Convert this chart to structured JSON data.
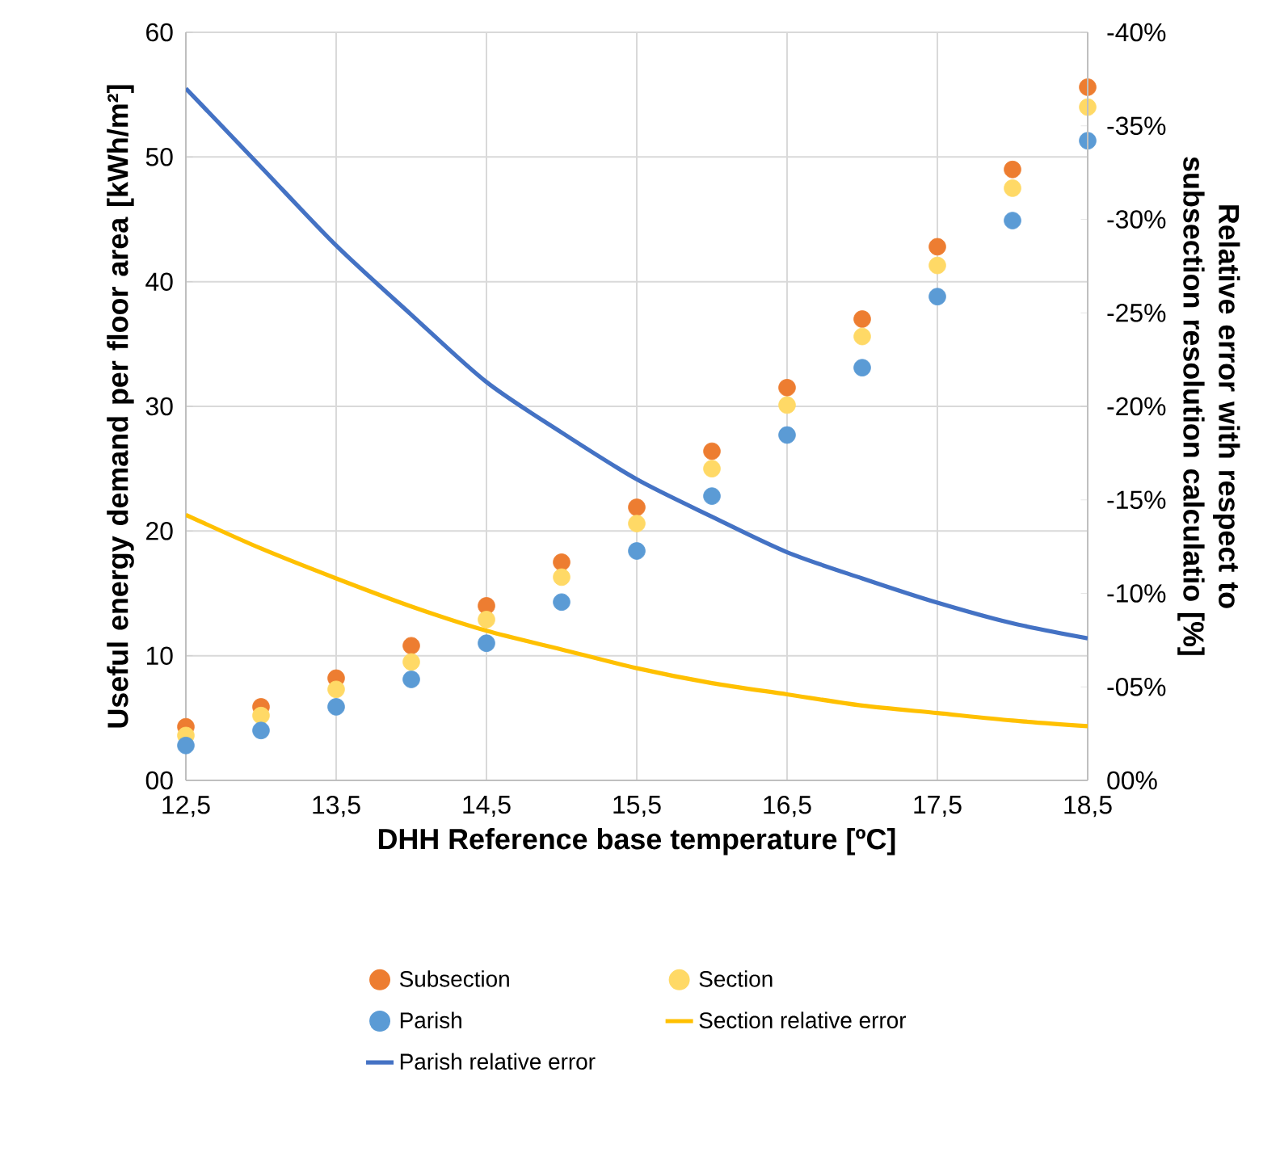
{
  "chart_data": {
    "type": "scatter",
    "xlabel": "DHH Reference base temperature [ºC]",
    "ylabel": "Useful energy demand per floor area [kWh/m²]",
    "y2label": "Relative error with respect to subsection resolution calculatio [%]",
    "x": [
      12.5,
      13,
      13.5,
      14,
      14.5,
      15,
      15.5,
      16,
      16.5,
      17,
      17.5,
      18,
      18.5
    ],
    "xlim": [
      12.5,
      18.5
    ],
    "xticks": [
      {
        "value": 12.5,
        "label": "12,5"
      },
      {
        "value": 13.5,
        "label": "13,5"
      },
      {
        "value": 14.5,
        "label": "14,5"
      },
      {
        "value": 15.5,
        "label": "15,5"
      },
      {
        "value": 16.5,
        "label": "16,5"
      },
      {
        "value": 17.5,
        "label": "17,5"
      },
      {
        "value": 18.5,
        "label": "18,5"
      }
    ],
    "ylim": [
      0,
      60
    ],
    "yticks": [
      {
        "value": 0,
        "label": "00"
      },
      10,
      20,
      30,
      40,
      50,
      60
    ],
    "y2lim": [
      0,
      -40
    ],
    "y2ticks": [
      {
        "value": 0,
        "label": "00%"
      },
      {
        "value": -5,
        "label": "-05%"
      },
      {
        "value": -10,
        "label": "-10%"
      },
      {
        "value": -15,
        "label": "-15%"
      },
      {
        "value": -20,
        "label": "-20%"
      },
      {
        "value": -25,
        "label": "-25%"
      },
      {
        "value": -30,
        "label": "-30%"
      },
      {
        "value": -35,
        "label": "-35%"
      },
      {
        "value": -40,
        "label": "-40%"
      }
    ],
    "grid": true,
    "marker": "circle",
    "legend": "bottom",
    "series": [
      {
        "name": "Subsection",
        "color": "#ed7d31",
        "values": [
          4.3,
          5.9,
          8.2,
          10.8,
          14.0,
          17.5,
          21.9,
          26.4,
          31.5,
          37.0,
          42.8,
          49.0,
          55.6
        ]
      },
      {
        "name": "Section",
        "color": "#ffd966",
        "values": [
          3.6,
          5.2,
          7.3,
          9.5,
          12.9,
          16.3,
          20.6,
          25.0,
          30.1,
          35.6,
          41.3,
          47.5,
          54.0
        ]
      },
      {
        "name": "Parish",
        "color": "#5b9bd5",
        "values": [
          2.8,
          4.0,
          5.9,
          8.1,
          11.0,
          14.3,
          18.4,
          22.8,
          27.7,
          33.1,
          38.8,
          44.9,
          51.3
        ]
      },
      {
        "name": "Section relative error",
        "color": "#ffc000",
        "type": "line",
        "axis": "y2",
        "marker": "none",
        "values": [
          -14.2,
          -12.4,
          -10.8,
          -9.3,
          -8.0,
          -7.0,
          -6.0,
          -5.2,
          -4.6,
          -4.0,
          -3.6,
          -3.2,
          -2.9
        ]
      },
      {
        "name": "Parish relative error",
        "color": "#4472c4",
        "type": "line",
        "axis": "y2",
        "marker": "none",
        "values": [
          -37.0,
          -32.8,
          -28.6,
          -24.9,
          -21.3,
          -18.6,
          -16.1,
          -14.1,
          -12.2,
          -10.8,
          -9.5,
          -8.4,
          -7.6
        ]
      }
    ]
  }
}
